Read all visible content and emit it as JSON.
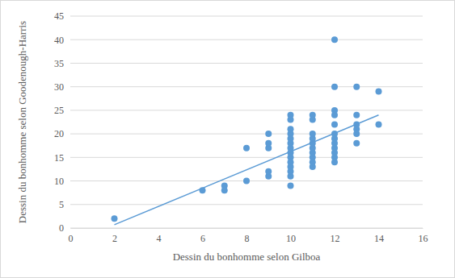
{
  "chart_data": {
    "type": "scatter",
    "x_label": "Dessin du bonhomme selon Gilboa",
    "y_label": "Dessin du bonhomme selon Goodenough-Harris",
    "xlim": [
      0,
      16
    ],
    "xticks": [
      0,
      2,
      4,
      6,
      8,
      10,
      12,
      14,
      16
    ],
    "ylim": [
      0,
      45
    ],
    "yticks": [
      0,
      5,
      10,
      15,
      20,
      25,
      30,
      35,
      40,
      45
    ],
    "grid": true,
    "series": [
      {
        "type": "scatter",
        "color": "#5b9bd5",
        "marker": "circle",
        "x": [
          2,
          6,
          7,
          7,
          8,
          8,
          9,
          9,
          9,
          9,
          9,
          10,
          10,
          10,
          10,
          10,
          10,
          10,
          10,
          10,
          10,
          10,
          10,
          10,
          10,
          11,
          11,
          11,
          11,
          11,
          11,
          11,
          11,
          11,
          11,
          12,
          12,
          12,
          12,
          12,
          12,
          12,
          12,
          12,
          12,
          12,
          12,
          13,
          13,
          13,
          13,
          13,
          13,
          14,
          14
        ],
        "values": [
          2,
          8,
          8,
          9,
          10,
          17,
          11,
          12,
          17,
          18,
          20,
          9,
          11,
          12,
          13,
          14,
          15,
          16,
          17,
          18,
          19,
          20,
          21,
          23,
          24,
          13,
          14,
          15,
          16,
          17,
          18,
          19,
          20,
          23,
          24,
          14,
          15,
          16,
          17,
          18,
          19,
          20,
          22,
          24,
          25,
          30,
          40,
          18,
          20,
          21,
          22,
          24,
          30,
          22,
          29
        ]
      },
      {
        "type": "line",
        "color": "#5b9bd5",
        "line_style": "solid",
        "x": [
          2,
          14
        ],
        "values": [
          0.7,
          24
        ]
      }
    ]
  }
}
